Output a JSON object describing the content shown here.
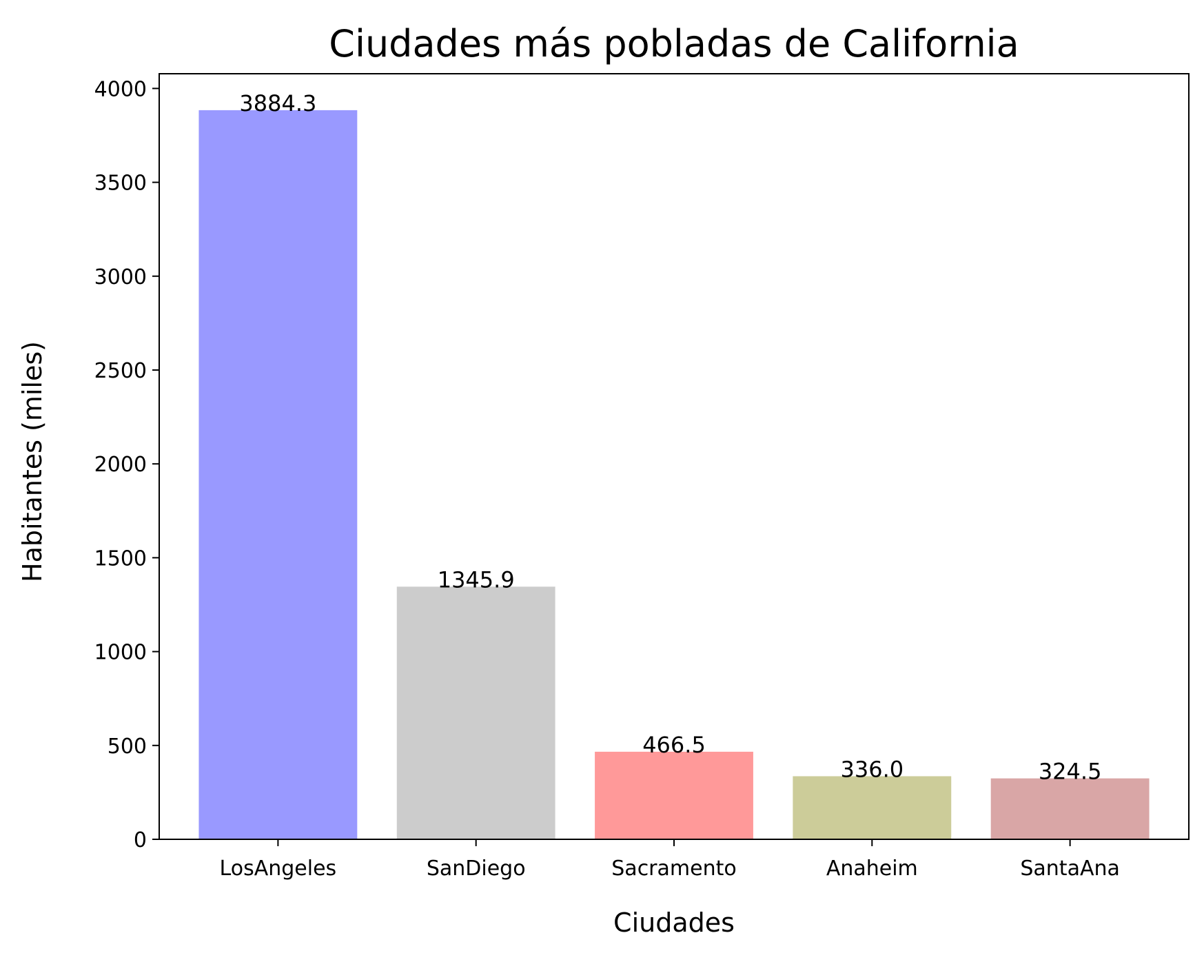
{
  "chart_data": {
    "type": "bar",
    "title": "Ciudades más pobladas de California",
    "xlabel": "Ciudades",
    "ylabel": "Habitantes (miles)",
    "categories": [
      "LosAngeles",
      "SanDiego",
      "Sacramento",
      "Anaheim",
      "SantaAna"
    ],
    "values": [
      3884.3,
      1345.9,
      466.5,
      336.0,
      324.5
    ],
    "value_labels": [
      "3884.3",
      "1345.9",
      "466.5",
      "336.0",
      "324.5"
    ],
    "colors": [
      "#9999ff",
      "#cccccc",
      "#ff9999",
      "#cccc99",
      "#d9a6a6"
    ],
    "ylim": [
      0,
      4078.5
    ],
    "yticks": [
      0,
      500,
      1000,
      1500,
      2000,
      2500,
      3000,
      3500,
      4000
    ],
    "grid": false,
    "legend": "none"
  }
}
